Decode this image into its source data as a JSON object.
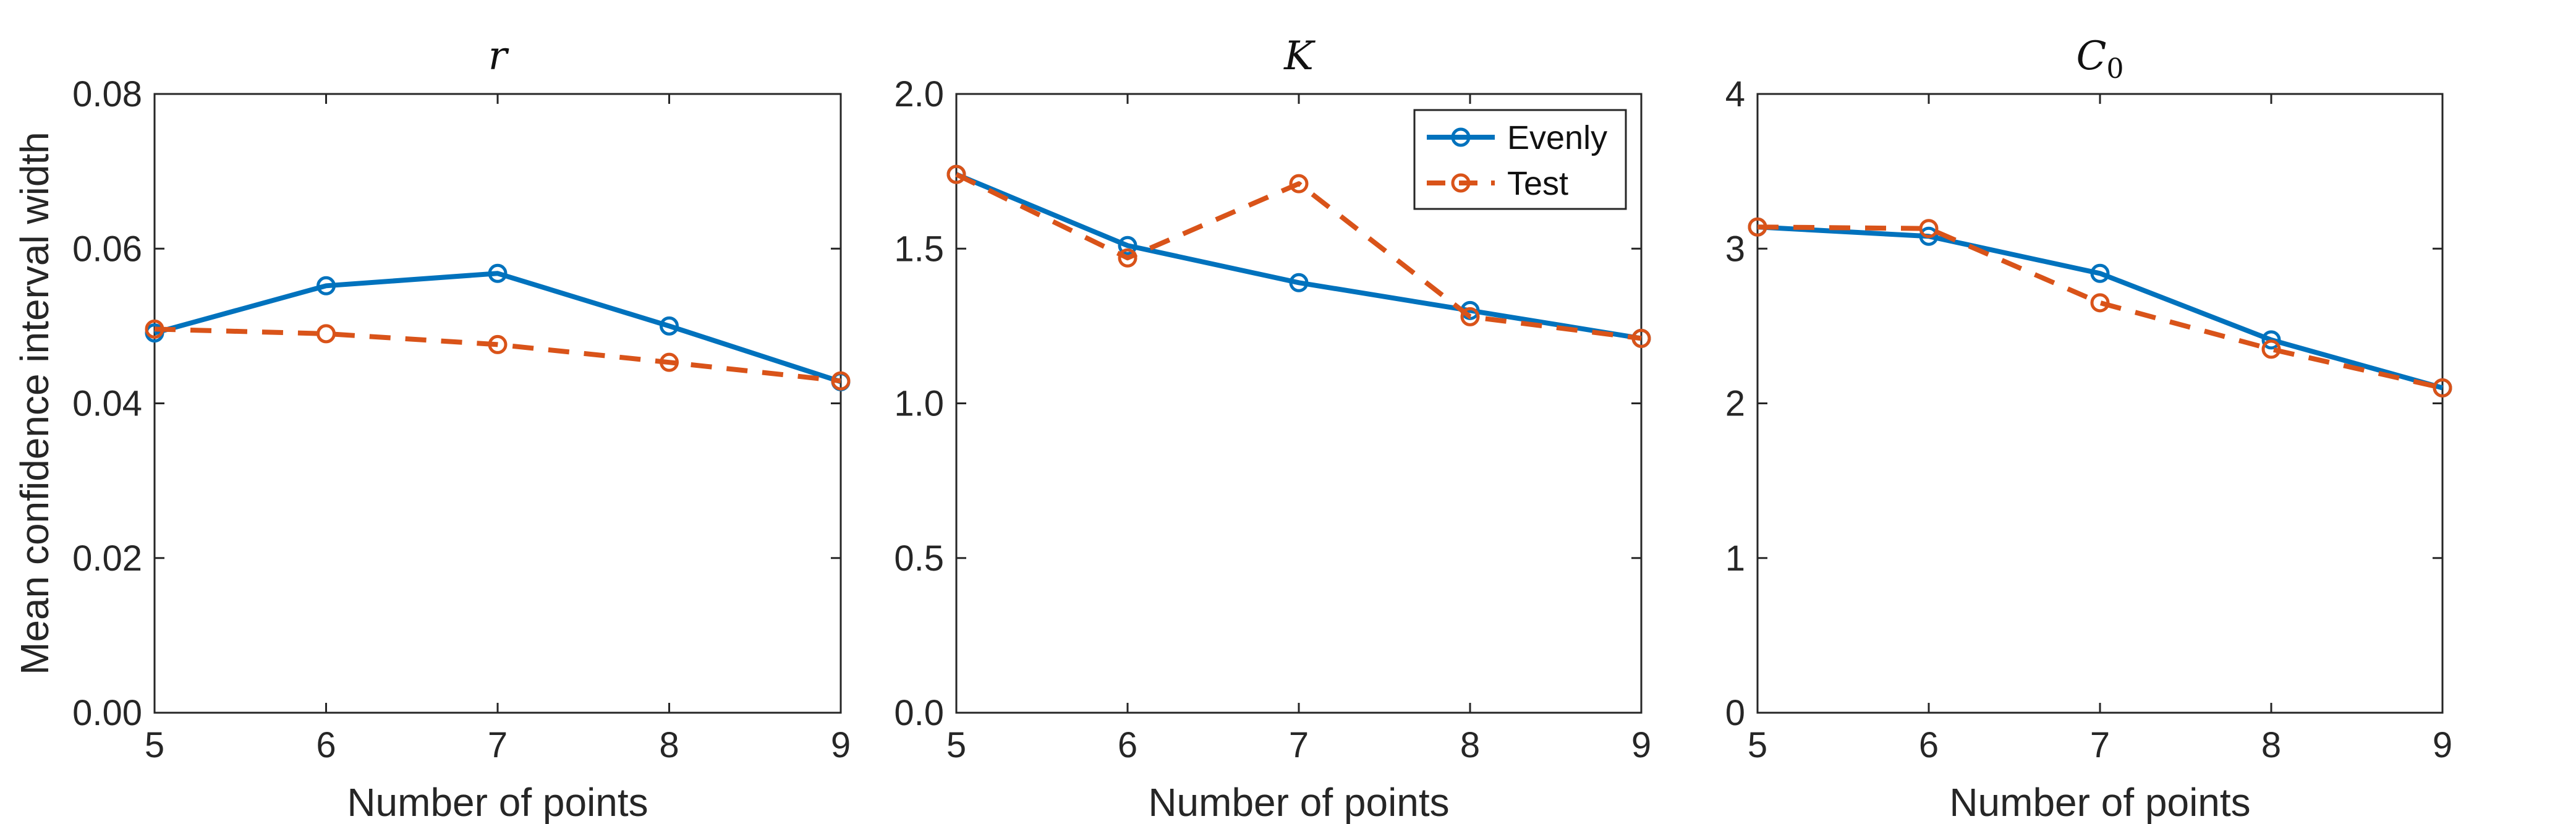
{
  "chart_data": [
    {
      "type": "line",
      "title": "r",
      "xlabel": "Number of points",
      "ylabel": "Mean confidence interval width",
      "x": [
        5,
        6,
        7,
        8,
        9
      ],
      "xticks": [
        "5",
        "6",
        "7",
        "8",
        "9"
      ],
      "xlim": [
        5,
        9
      ],
      "ylim": [
        0,
        0.08
      ],
      "yticks": [
        "0.00",
        "0.02",
        "0.04",
        "0.06",
        "0.08"
      ],
      "series": [
        {
          "name": "Evenly",
          "values": [
            0.0491,
            0.0552,
            0.0568,
            0.05,
            0.0428
          ]
        },
        {
          "name": "Test",
          "values": [
            0.0496,
            0.049,
            0.0476,
            0.0453,
            0.0429
          ]
        }
      ]
    },
    {
      "type": "line",
      "title": "K",
      "xlabel": "Number of points",
      "ylabel": "",
      "x": [
        5,
        6,
        7,
        8,
        9
      ],
      "xticks": [
        "5",
        "6",
        "7",
        "8",
        "9"
      ],
      "xlim": [
        5,
        9
      ],
      "ylim": [
        0,
        2.0
      ],
      "yticks": [
        "0.0",
        "0.5",
        "1.0",
        "1.5",
        "2.0"
      ],
      "legend": "top-right",
      "series": [
        {
          "name": "Evenly",
          "values": [
            1.74,
            1.51,
            1.39,
            1.3,
            1.21
          ]
        },
        {
          "name": "Test",
          "values": [
            1.74,
            1.47,
            1.71,
            1.28,
            1.21
          ]
        }
      ]
    },
    {
      "type": "line",
      "title": "C",
      "title_sub": "0",
      "xlabel": "Number of points",
      "ylabel": "",
      "x": [
        5,
        6,
        7,
        8,
        9
      ],
      "xticks": [
        "5",
        "6",
        "7",
        "8",
        "9"
      ],
      "xlim": [
        5,
        9
      ],
      "ylim": [
        0,
        4
      ],
      "yticks": [
        "0",
        "1",
        "2",
        "3",
        "4"
      ],
      "series": [
        {
          "name": "Evenly",
          "values": [
            3.14,
            3.08,
            2.84,
            2.41,
            2.1
          ]
        },
        {
          "name": "Test",
          "values": [
            3.14,
            3.13,
            2.65,
            2.35,
            2.1
          ]
        }
      ]
    }
  ],
  "colors": {
    "Evenly": "#0072BD",
    "Test": "#D95319",
    "axis": "#262626"
  },
  "legend": {
    "entries": [
      "Evenly",
      "Test"
    ]
  }
}
